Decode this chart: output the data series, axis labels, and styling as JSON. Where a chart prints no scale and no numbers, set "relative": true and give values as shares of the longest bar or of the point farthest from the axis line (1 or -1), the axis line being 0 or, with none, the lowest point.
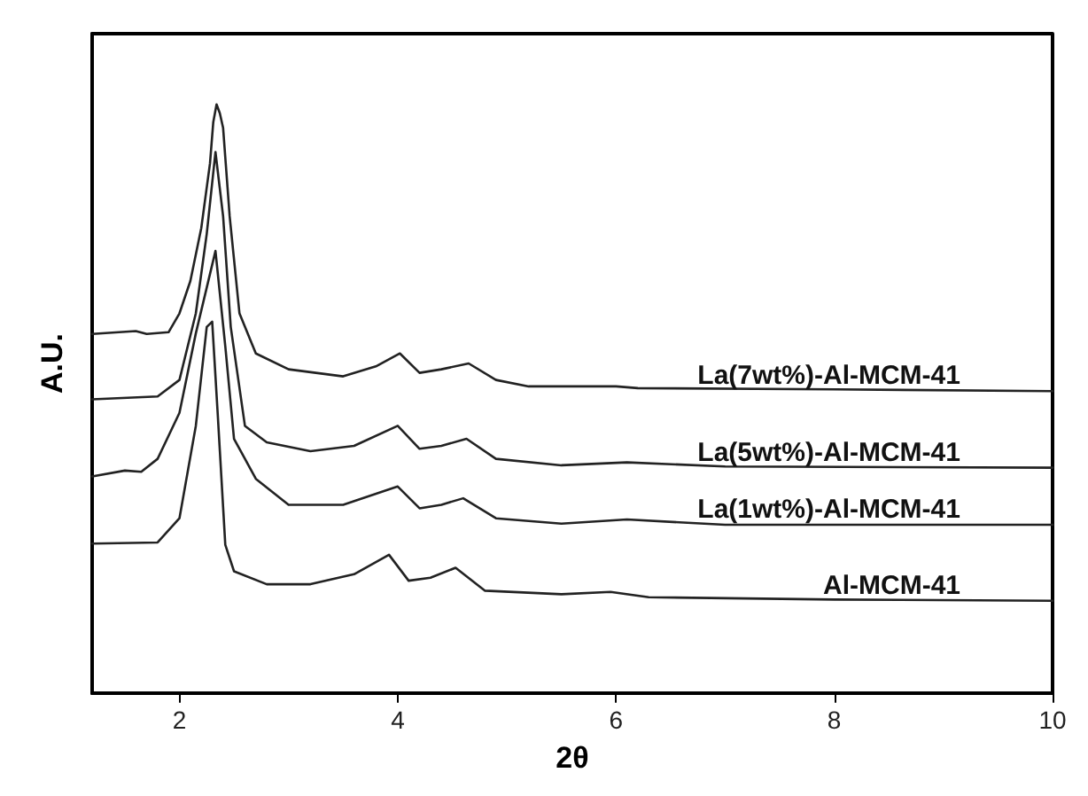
{
  "chart_data": {
    "type": "line",
    "relative": true,
    "xlabel": "2θ",
    "ylabel": "A.U.",
    "xlim": [
      1.2,
      10
    ],
    "xticks": [
      2,
      4,
      6,
      8,
      10
    ],
    "grid": false,
    "legend": false,
    "marker": "none",
    "line_style": "solid",
    "series": [
      {
        "name": "La(7wt%)-Al-MCM-41",
        "color": "#222222",
        "x": [
          1.2,
          1.6,
          1.7,
          1.9,
          2.0,
          2.1,
          2.2,
          2.28,
          2.31,
          2.34,
          2.37,
          2.4,
          2.46,
          2.55,
          2.7,
          3.0,
          3.5,
          3.8,
          4.02,
          4.2,
          4.4,
          4.65,
          4.9,
          5.2,
          6.0,
          6.2,
          8,
          10
        ],
        "values": [
          0.61,
          0.615,
          0.61,
          0.613,
          0.645,
          0.7,
          0.79,
          0.9,
          0.97,
          1.0,
          0.985,
          0.96,
          0.81,
          0.645,
          0.577,
          0.55,
          0.538,
          0.555,
          0.577,
          0.544,
          0.55,
          0.56,
          0.532,
          0.521,
          0.521,
          0.518,
          0.516,
          0.513
        ]
      },
      {
        "name": "La(5wt%)-Al-MCM-41",
        "color": "#222222",
        "x": [
          1.2,
          1.8,
          2.0,
          2.15,
          2.25,
          2.33,
          2.4,
          2.47,
          2.6,
          2.8,
          3.2,
          3.6,
          4.0,
          4.2,
          4.4,
          4.63,
          4.9,
          5.5,
          6.1,
          7,
          10
        ],
        "values": [
          0.499,
          0.504,
          0.532,
          0.645,
          0.78,
          0.919,
          0.81,
          0.622,
          0.454,
          0.426,
          0.411,
          0.42,
          0.454,
          0.415,
          0.42,
          0.432,
          0.398,
          0.387,
          0.392,
          0.385,
          0.383
        ]
      },
      {
        "name": "La(1wt%)-Al-MCM-41",
        "color": "#222222",
        "x": [
          1.2,
          1.5,
          1.65,
          1.8,
          2.0,
          2.15,
          2.33,
          2.42,
          2.5,
          2.7,
          3.0,
          3.5,
          4.0,
          4.2,
          4.4,
          4.6,
          4.9,
          5.5,
          6.1,
          7,
          10
        ],
        "values": [
          0.368,
          0.378,
          0.376,
          0.398,
          0.476,
          0.611,
          0.751,
          0.589,
          0.432,
          0.364,
          0.32,
          0.32,
          0.351,
          0.314,
          0.32,
          0.331,
          0.297,
          0.288,
          0.295,
          0.286,
          0.286
        ]
      },
      {
        "name": "Al-MCM-41",
        "color": "#222222",
        "x": [
          1.2,
          1.8,
          2.0,
          2.15,
          2.25,
          2.3,
          2.35,
          2.42,
          2.5,
          2.8,
          3.2,
          3.6,
          3.92,
          4.1,
          4.3,
          4.53,
          4.8,
          5.5,
          5.95,
          6.3,
          8,
          10
        ],
        "values": [
          0.254,
          0.256,
          0.297,
          0.454,
          0.622,
          0.631,
          0.476,
          0.252,
          0.207,
          0.185,
          0.185,
          0.202,
          0.235,
          0.191,
          0.196,
          0.213,
          0.174,
          0.168,
          0.172,
          0.163,
          0.159,
          0.157
        ]
      }
    ]
  }
}
